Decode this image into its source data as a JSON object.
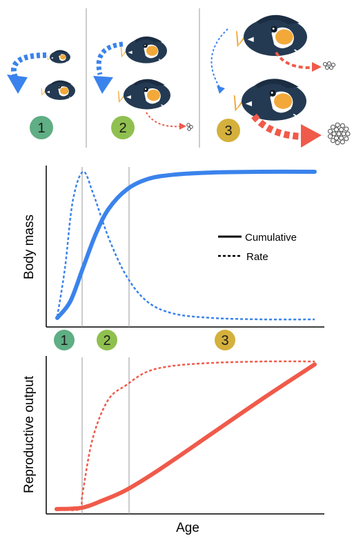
{
  "colors": {
    "mass": "#3a83ec",
    "repro": "#f05a4a",
    "stage1": "#5fae84",
    "stage2": "#8fc04f",
    "stage3": "#d4b03c",
    "fish_body": "#243a52",
    "fish_face": "#f2a93a",
    "divider": "#999999"
  },
  "stages": [
    {
      "label": "1"
    },
    {
      "label": "2"
    },
    {
      "label": "3"
    }
  ],
  "legend": {
    "cumulative_label": "Cumulative",
    "rate_label": "Rate"
  },
  "axis_labels": {
    "mass_ylabel": "Body mass",
    "repro_ylabel": "Reproductive output",
    "xlabel": "Age"
  },
  "chart_data": [
    {
      "type": "line",
      "ylabel": "Body mass",
      "xlabel": "",
      "x_range": [
        0,
        1
      ],
      "y_range": [
        0,
        1
      ],
      "stage_boundaries": [
        0.1,
        0.27
      ],
      "series": [
        {
          "name": "Cumulative",
          "style": "solid",
          "x": [
            0,
            0.05,
            0.1,
            0.15,
            0.2,
            0.27,
            0.35,
            0.45,
            0.6,
            0.8,
            1.0
          ],
          "y": [
            0.01,
            0.12,
            0.35,
            0.58,
            0.75,
            0.88,
            0.95,
            0.98,
            0.995,
            1.0,
            1.0
          ]
        },
        {
          "name": "Rate",
          "style": "dashed",
          "x": [
            0,
            0.03,
            0.06,
            0.1,
            0.14,
            0.2,
            0.27,
            0.35,
            0.45,
            0.6,
            0.8,
            1.0
          ],
          "y": [
            0.02,
            0.35,
            0.8,
            1.0,
            0.85,
            0.55,
            0.29,
            0.12,
            0.04,
            0.01,
            0.0,
            0.0
          ]
        }
      ]
    },
    {
      "type": "line",
      "ylabel": "Reproductive output",
      "xlabel": "Age",
      "x_range": [
        0,
        1
      ],
      "y_range": [
        0,
        1
      ],
      "stage_boundaries": [
        0.1,
        0.27
      ],
      "series": [
        {
          "name": "Cumulative",
          "style": "solid",
          "x": [
            0,
            0.1,
            0.18,
            0.27,
            0.4,
            0.6,
            0.8,
            1.0
          ],
          "y": [
            0.0,
            0.01,
            0.06,
            0.13,
            0.27,
            0.51,
            0.75,
            0.98
          ]
        },
        {
          "name": "Rate",
          "style": "dashed",
          "x": [
            0,
            0.09,
            0.1,
            0.14,
            0.2,
            0.27,
            0.35,
            0.45,
            0.6,
            0.8,
            1.0
          ],
          "y": [
            0.0,
            0.0,
            0.1,
            0.48,
            0.74,
            0.84,
            0.93,
            0.97,
            0.99,
            1.0,
            1.0
          ]
        }
      ]
    }
  ]
}
